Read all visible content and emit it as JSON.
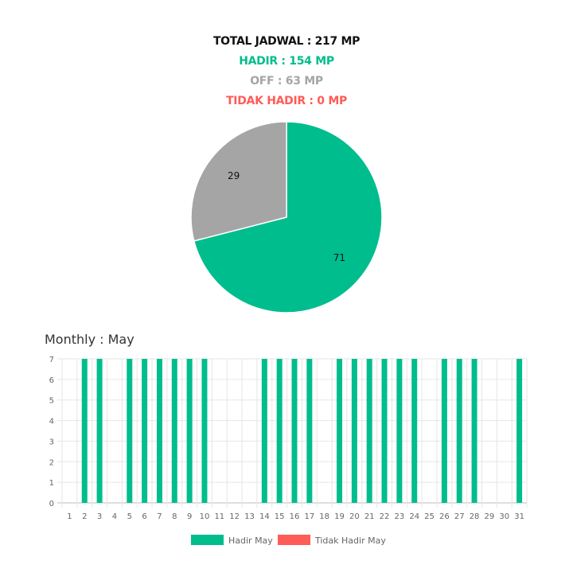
{
  "summary": {
    "total": "TOTAL JADWAL : 217 MP",
    "hadir": "HADIR : 154 MP",
    "off": "OFF : 63 MP",
    "tidak_hadir": "TIDAK HADIR : 0 MP"
  },
  "colors": {
    "total": "#111111",
    "hadir": "#00bd8d",
    "off": "#a5a5a5",
    "tidak_hadir": "#ff5b57",
    "grid": "#e6e6e6",
    "tick": "#666666"
  },
  "monthly_title": "Monthly : May",
  "chart_data": [
    {
      "type": "pie",
      "series": [
        {
          "label": "71",
          "value": 71,
          "color": "#00bd8d"
        },
        {
          "label": "29",
          "value": 29,
          "color": "#a5a5a5"
        }
      ]
    },
    {
      "type": "bar",
      "title": "Monthly : May",
      "categories": [
        "1",
        "2",
        "3",
        "4",
        "5",
        "6",
        "7",
        "8",
        "9",
        "10",
        "11",
        "12",
        "13",
        "14",
        "15",
        "16",
        "17",
        "18",
        "19",
        "20",
        "21",
        "22",
        "23",
        "24",
        "25",
        "26",
        "27",
        "28",
        "29",
        "30",
        "31"
      ],
      "ylim": [
        0,
        7
      ],
      "yticks": [
        "0",
        "1",
        "2",
        "3",
        "4",
        "5",
        "6",
        "7"
      ],
      "grid": true,
      "legend_position": "bottom",
      "series": [
        {
          "name": "Hadir May",
          "color": "#00bd8d",
          "values": [
            0,
            7,
            7,
            0,
            7,
            7,
            7,
            7,
            7,
            7,
            0,
            0,
            0,
            7,
            7,
            7,
            7,
            0,
            7,
            7,
            7,
            7,
            7,
            7,
            0,
            7,
            7,
            7,
            0,
            0,
            7
          ]
        },
        {
          "name": "Tidak Hadir May",
          "color": "#ff5b57",
          "values": [
            0,
            0,
            0,
            0,
            0,
            0,
            0,
            0,
            0,
            0,
            0,
            0,
            0,
            0,
            0,
            0,
            0,
            0,
            0,
            0,
            0,
            0,
            0,
            0,
            0,
            0,
            0,
            0,
            0,
            0,
            0
          ]
        }
      ]
    }
  ]
}
